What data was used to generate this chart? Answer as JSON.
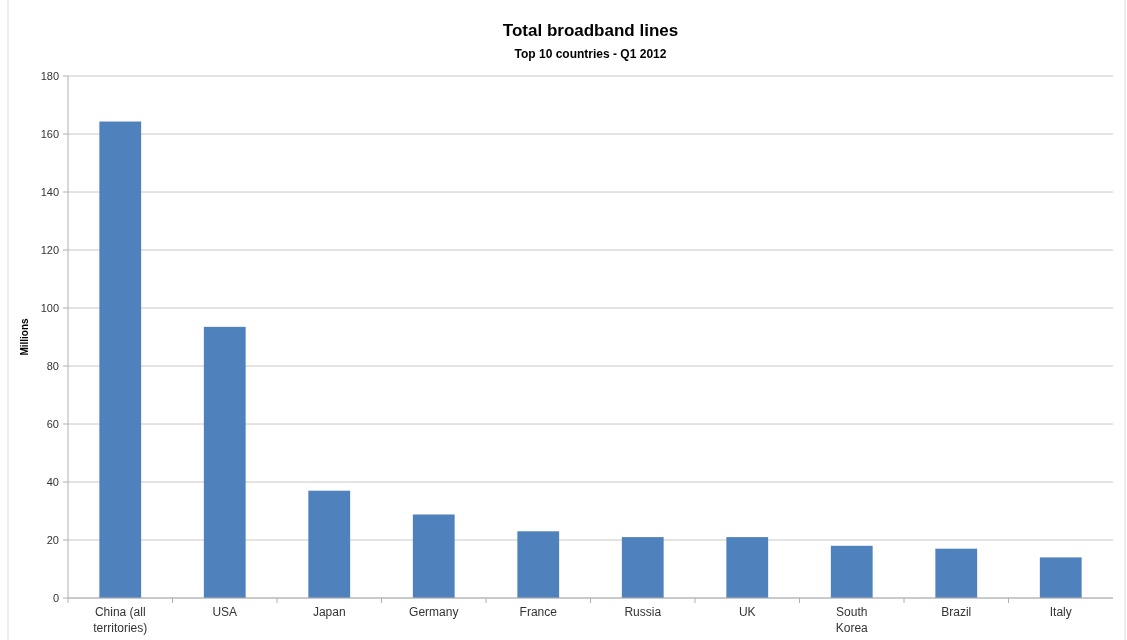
{
  "chart_data": {
    "type": "bar",
    "title": "Total broadband lines",
    "subtitle": "Top 10 countries - Q1 2012",
    "ylabel": "Millions",
    "categories": [
      "China (all territories)",
      "USA",
      "Japan",
      "Germany",
      "France",
      "Russia",
      "UK",
      "South Korea",
      "Brazil",
      "Italy"
    ],
    "values": [
      164.3,
      93.5,
      37,
      28.8,
      23,
      21,
      21,
      18,
      17,
      14
    ],
    "color": "#4f81bd",
    "ylim": [
      0,
      180
    ],
    "yticks": [
      0,
      20,
      40,
      60,
      80,
      100,
      120,
      140,
      160,
      180
    ],
    "grid": "y"
  }
}
